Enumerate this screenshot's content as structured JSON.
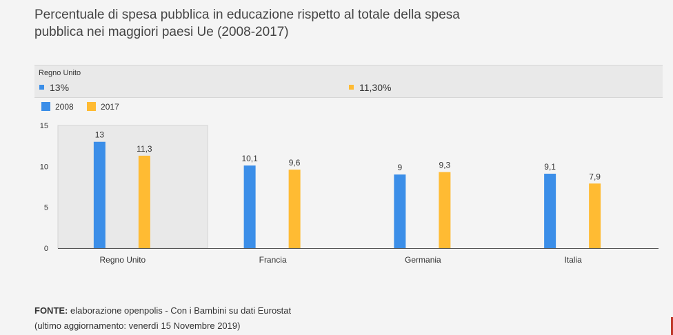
{
  "title": "Percentuale di spesa pubblica in educazione rispetto al totale della spesa pubblica nei maggiori paesi Ue (2008-2017)",
  "tooltip": {
    "category": "Regno Unito",
    "values": [
      "13%",
      "11,30%"
    ]
  },
  "colors": {
    "s2008": "#3b8ee8",
    "s2017": "#ffbb33",
    "highlight": "#e9e9e9"
  },
  "chart_data": {
    "type": "bar",
    "categories": [
      "Regno Unito",
      "Francia",
      "Germania",
      "Italia"
    ],
    "series": [
      {
        "name": "2008",
        "values": [
          13,
          10.1,
          9,
          9.1
        ],
        "labels": [
          "13",
          "10,1",
          "9",
          "9,1"
        ]
      },
      {
        "name": "2017",
        "values": [
          11.3,
          9.6,
          9.3,
          7.9
        ],
        "labels": [
          "11,3",
          "9,6",
          "9,3",
          "7,9"
        ]
      }
    ],
    "yticks": [
      "0",
      "5",
      "10",
      "15"
    ],
    "ylim": [
      0,
      15
    ],
    "highlighted_category": "Regno Unito",
    "legend_position": "top-left"
  },
  "footer": {
    "source_label": "FONTE:",
    "source_text": " elaborazione openpolis - Con i Bambini su dati Eurostat",
    "updated": "(ultimo aggiornamento: venerdì 15 Novembre 2019)"
  }
}
